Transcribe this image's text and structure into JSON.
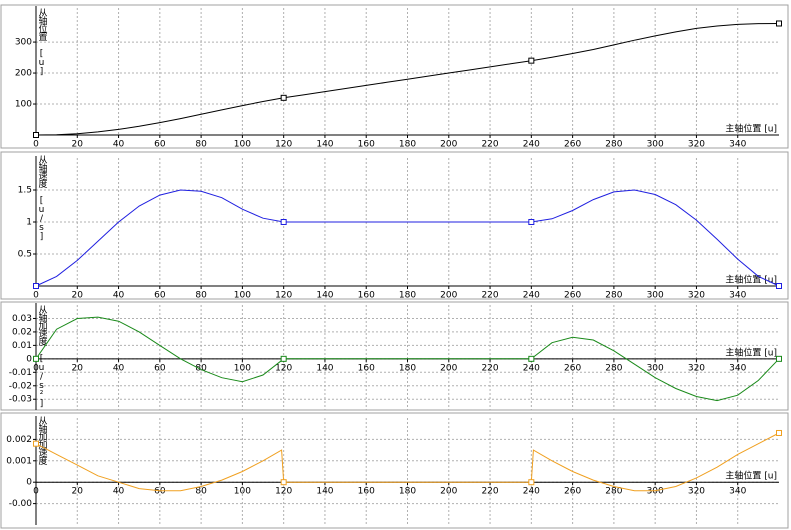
{
  "chart_data": [
    {
      "type": "line",
      "ylabel": "从轴位置 [u]",
      "xlabel": "主轴位置 [u]",
      "grid": true,
      "x": [
        0,
        10,
        20,
        30,
        40,
        50,
        60,
        70,
        80,
        90,
        100,
        110,
        120,
        130,
        140,
        150,
        160,
        170,
        180,
        190,
        200,
        210,
        220,
        230,
        240,
        250,
        260,
        270,
        280,
        290,
        300,
        310,
        320,
        330,
        340,
        350,
        360
      ],
      "series": [
        {
          "color": "#000000",
          "values": [
            0,
            1,
            4,
            10,
            18,
            28,
            40,
            53,
            67,
            81,
            95,
            108,
            120,
            130,
            140,
            150,
            160,
            170,
            180,
            190,
            200,
            210,
            220,
            230,
            240,
            251,
            263,
            276,
            291,
            306,
            320,
            333,
            344,
            352,
            357,
            359.5,
            360
          ]
        }
      ],
      "xlim": [
        0,
        360
      ],
      "xticks": [
        0,
        20,
        40,
        60,
        80,
        100,
        120,
        140,
        160,
        180,
        200,
        220,
        240,
        260,
        280,
        300,
        320,
        340
      ],
      "ylim": [
        0,
        410
      ],
      "yticks": [
        100,
        200,
        300
      ]
    },
    {
      "type": "line",
      "ylabel": "从轴速度 [u/s]",
      "xlabel": "主轴位置 [u]",
      "grid": true,
      "x": [
        0,
        10,
        20,
        30,
        40,
        50,
        60,
        70,
        80,
        90,
        100,
        110,
        120,
        130,
        140,
        150,
        160,
        170,
        180,
        190,
        200,
        210,
        220,
        230,
        240,
        250,
        260,
        270,
        280,
        290,
        300,
        310,
        320,
        330,
        340,
        350,
        360
      ],
      "series": [
        {
          "color": "#1f1fe0",
          "values": [
            0,
            0.15,
            0.4,
            0.7,
            1.0,
            1.25,
            1.42,
            1.5,
            1.48,
            1.38,
            1.2,
            1.06,
            1,
            1,
            1,
            1,
            1,
            1,
            1,
            1,
            1,
            1,
            1,
            1,
            1,
            1.05,
            1.18,
            1.35,
            1.47,
            1.5,
            1.43,
            1.27,
            1.03,
            0.73,
            0.42,
            0.15,
            0
          ]
        }
      ],
      "xlim": [
        0,
        360
      ],
      "xticks": [
        0,
        20,
        40,
        60,
        80,
        100,
        120,
        140,
        160,
        180,
        200,
        220,
        240,
        260,
        280,
        300,
        320,
        340
      ],
      "ylim": [
        0,
        2
      ],
      "yticks": [
        0.5,
        1,
        1.5
      ]
    },
    {
      "type": "line",
      "ylabel": "从轴加速度 [u/s²]",
      "xlabel": "主轴位置 [u]",
      "grid": true,
      "x": [
        0,
        10,
        20,
        30,
        40,
        50,
        60,
        70,
        80,
        90,
        100,
        110,
        120,
        130,
        140,
        150,
        160,
        170,
        180,
        190,
        200,
        210,
        220,
        230,
        240,
        250,
        260,
        270,
        280,
        290,
        300,
        310,
        320,
        330,
        340,
        350,
        360
      ],
      "series": [
        {
          "color": "#1a8a1a",
          "values": [
            0,
            0.022,
            0.03,
            0.031,
            0.028,
            0.02,
            0.01,
            0,
            -0.008,
            -0.014,
            -0.017,
            -0.012,
            0,
            0,
            0,
            0,
            0,
            0,
            0,
            0,
            0,
            0,
            0,
            0,
            0,
            0.012,
            0.016,
            0.014,
            0.006,
            -0.004,
            -0.014,
            -0.022,
            -0.028,
            -0.031,
            -0.027,
            -0.016,
            0
          ]
        }
      ],
      "xlim": [
        0,
        360
      ],
      "xticks": [
        0,
        20,
        40,
        60,
        80,
        100,
        120,
        140,
        160,
        180,
        200,
        220,
        240,
        260,
        280,
        300,
        320,
        340
      ],
      "ylim": [
        -0.038,
        0.04
      ],
      "yticks": [
        -0.03,
        -0.02,
        -0.01,
        0,
        0.01,
        0.02,
        0.03
      ]
    },
    {
      "type": "line",
      "ylabel": "从轴加加速度",
      "xlabel": "主轴位置 [u]",
      "grid": true,
      "x": [
        0,
        10,
        20,
        30,
        40,
        50,
        60,
        70,
        80,
        90,
        100,
        110,
        119,
        120,
        130,
        140,
        150,
        160,
        170,
        180,
        190,
        200,
        210,
        220,
        230,
        240,
        241,
        250,
        260,
        270,
        280,
        290,
        300,
        310,
        320,
        330,
        340,
        350,
        360
      ],
      "series": [
        {
          "color": "#f0a020",
          "values": [
            0.0018,
            0.0013,
            0.0008,
            0.0003,
            0,
            -0.0003,
            -0.0004,
            -0.0004,
            -0.0002,
            0.0001,
            0.0005,
            0.001,
            0.0015,
            0,
            0,
            0,
            0,
            0,
            0,
            0,
            0,
            0,
            0,
            0,
            0,
            0,
            0.0015,
            0.001,
            0.0005,
            0.0001,
            -0.0002,
            -0.0004,
            -0.0004,
            -0.0002,
            0.0002,
            0.0007,
            0.0013,
            0.0018,
            0.0023
          ]
        }
      ],
      "xlim": [
        0,
        360
      ],
      "xticks": [
        0,
        20,
        40,
        60,
        80,
        100,
        120,
        140,
        160,
        180,
        200,
        220,
        240,
        260,
        280,
        300,
        320,
        340
      ],
      "ylim": [
        -0.002,
        0.003
      ],
      "yticks": [
        {
          "value": -0.001,
          "label": "-0.00"
        },
        0,
        0.001,
        0.002
      ]
    }
  ]
}
